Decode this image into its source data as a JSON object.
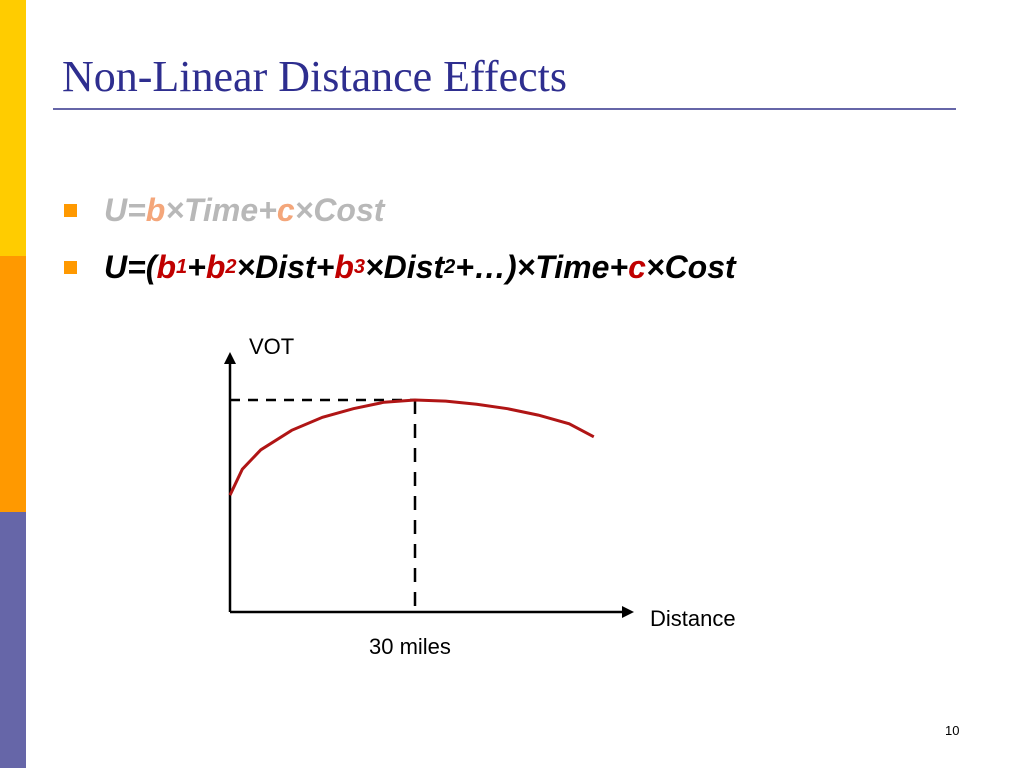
{
  "colors": {
    "accent_title": "#2E2E8F",
    "side_bar_top": "#FFCC00",
    "side_bar_middle": "#FF9900",
    "side_bar_bottom": "#6666A8",
    "bullet": "#FF9900",
    "coefficient_red": "#C00000",
    "coefficient_faded": "#F4A67A",
    "faded_text": "#B8B8B8",
    "curve": "#B01515"
  },
  "slide": {
    "title": "Non-Linear Distance Effects",
    "page_number": "10"
  },
  "bullets": {
    "first": {
      "p1": "U=",
      "b": "b",
      "p2": "×Time+",
      "c": "c",
      "p3": "×Cost"
    },
    "second": {
      "p1": "U=(",
      "b1": "b",
      "sub1": "1",
      "plus1": "+",
      "b2": "b",
      "sub2": "2",
      "dist1": "×Dist+",
      "b3": "b",
      "sub3": "3",
      "dist2": "×Dist",
      "sup2": "2",
      "rest": "+…)×Time+",
      "c": "c",
      "cost": "×Cost"
    }
  },
  "chart_data": {
    "type": "line",
    "ylabel": "VOT",
    "xlabel": "Distance",
    "annotation": "30 miles",
    "peak_x": 30,
    "xlim": [
      0,
      60
    ],
    "ylim": [
      0,
      1
    ],
    "series": [
      {
        "x": [
          0,
          2,
          5,
          10,
          15,
          20,
          25,
          30,
          35,
          40,
          45,
          50,
          55,
          59
        ],
        "y": [
          0.54,
          0.66,
          0.75,
          0.84,
          0.9,
          0.94,
          0.97,
          0.98,
          0.975,
          0.96,
          0.94,
          0.91,
          0.87,
          0.81
        ]
      }
    ]
  }
}
